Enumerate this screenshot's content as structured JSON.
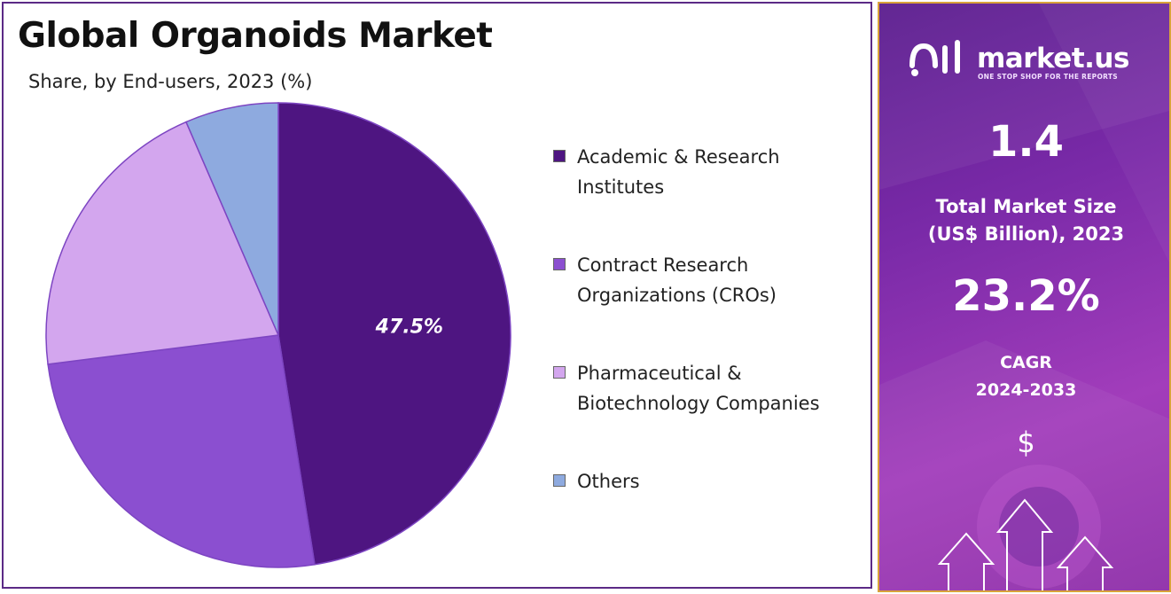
{
  "title": "Global Organoids Market",
  "subtitle": "Share, by End-users, 2023 (%)",
  "chart_data": {
    "type": "pie",
    "categories": [
      "Academic & Research Institutes",
      "Contract Research Organizations (CROs)",
      "Pharmaceutical & Biotechnology Companies",
      "Others"
    ],
    "values": [
      47.5,
      25.5,
      20.5,
      6.5
    ],
    "colors": [
      "#4e1581",
      "#8b4fd0",
      "#d3a6ee",
      "#8eaadf"
    ],
    "data_labels": [
      "47.5%",
      "",
      "",
      ""
    ],
    "legend_position": "right"
  },
  "legend": [
    {
      "lines": [
        "Academic & Research",
        "Institutes"
      ]
    },
    {
      "lines": [
        "Contract Research",
        "Organizations (CROs)"
      ]
    },
    {
      "lines": [
        "Pharmaceutical &",
        "Biotechnology Companies"
      ]
    },
    {
      "lines": [
        "Others"
      ]
    }
  ],
  "sidebar": {
    "brand_name": "market.us",
    "brand_tagline": "ONE STOP SHOP FOR THE REPORTS",
    "market_size_value": "1.4",
    "market_size_label_line1": "Total Market Size",
    "market_size_label_line2": "(US$ Billion), 2023",
    "cagr_value": "23.2%",
    "cagr_label_line1": "CAGR",
    "cagr_label_line2": "2024-2033",
    "currency_symbol": "$"
  },
  "icons": [
    "market-us-logo-icon",
    "dollar-icon",
    "up-arrow-icon"
  ]
}
